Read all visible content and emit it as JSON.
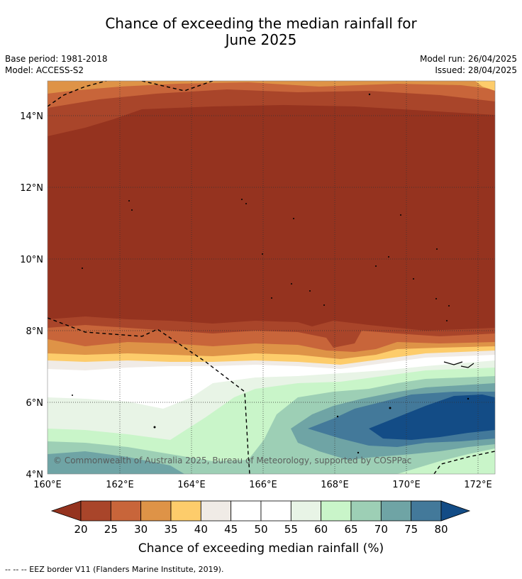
{
  "title_line1": "Chance of exceeding the median rainfall for",
  "title_line2": "June 2025",
  "base_period": "Base period: 1981-2018",
  "model": "Model: ACCESS-S2",
  "model_run": "Model run: 26/04/2025",
  "issued": "Issued: 28/04/2025",
  "copyright": "© Commonwealth of Australia 2025, Bureau of Meteorology, supported by COSPPac",
  "footnote": "--  --  -- EEZ border V11 (Flanders Marine Institute, 2019).",
  "colorbar": {
    "title": "Chance of exceeding median rainfall (%)",
    "labels": [
      "20",
      "25",
      "30",
      "35",
      "40",
      "45",
      "50",
      "55",
      "60",
      "65",
      "70",
      "75",
      "80"
    ],
    "colors": [
      "#a9452a",
      "#c8653a",
      "#de9347",
      "#fdcc6b",
      "#f0ebe6",
      "#ffffff",
      "#ffffff",
      "#e8f4e6",
      "#c9f5c9",
      "#9dcfb5",
      "#6fa4a5",
      "#43799a"
    ],
    "under_color": "#95331f",
    "over_color": "#134c86"
  },
  "map": {
    "lon_labels": [
      "160°E",
      "162°E",
      "164°E",
      "166°E",
      "168°E",
      "170°E",
      "172°E"
    ],
    "lat_labels": [
      "14°N",
      "12°N",
      "10°N",
      "8°N",
      "6°N",
      "4°N"
    ]
  }
}
